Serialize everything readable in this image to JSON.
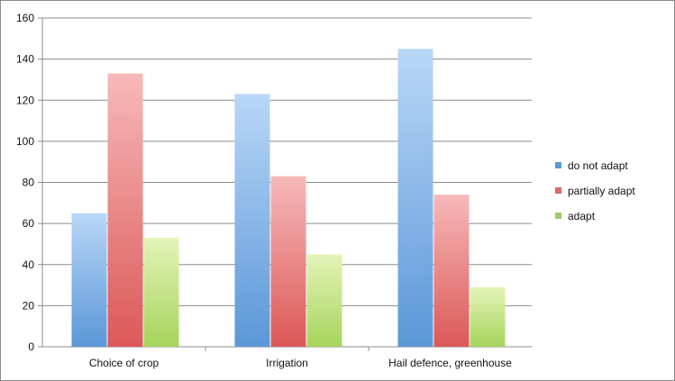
{
  "chart_data": {
    "type": "bar",
    "categories": [
      "Choice of crop",
      "Irrigation",
      "Hail defence, greenhouse"
    ],
    "series": [
      {
        "name": "do not adapt",
        "values": [
          65,
          123,
          145
        ],
        "color": "#5b9bd5"
      },
      {
        "name": "partially adapt",
        "values": [
          133,
          83,
          74
        ],
        "color": "#e06666"
      },
      {
        "name": "adapt",
        "values": [
          53,
          45,
          29
        ],
        "color": "#9ccc65"
      }
    ],
    "yticks": [
      0,
      20,
      40,
      60,
      80,
      100,
      120,
      140,
      160
    ],
    "ylim": [
      0,
      160
    ],
    "grid": true,
    "legend_position": "right"
  }
}
